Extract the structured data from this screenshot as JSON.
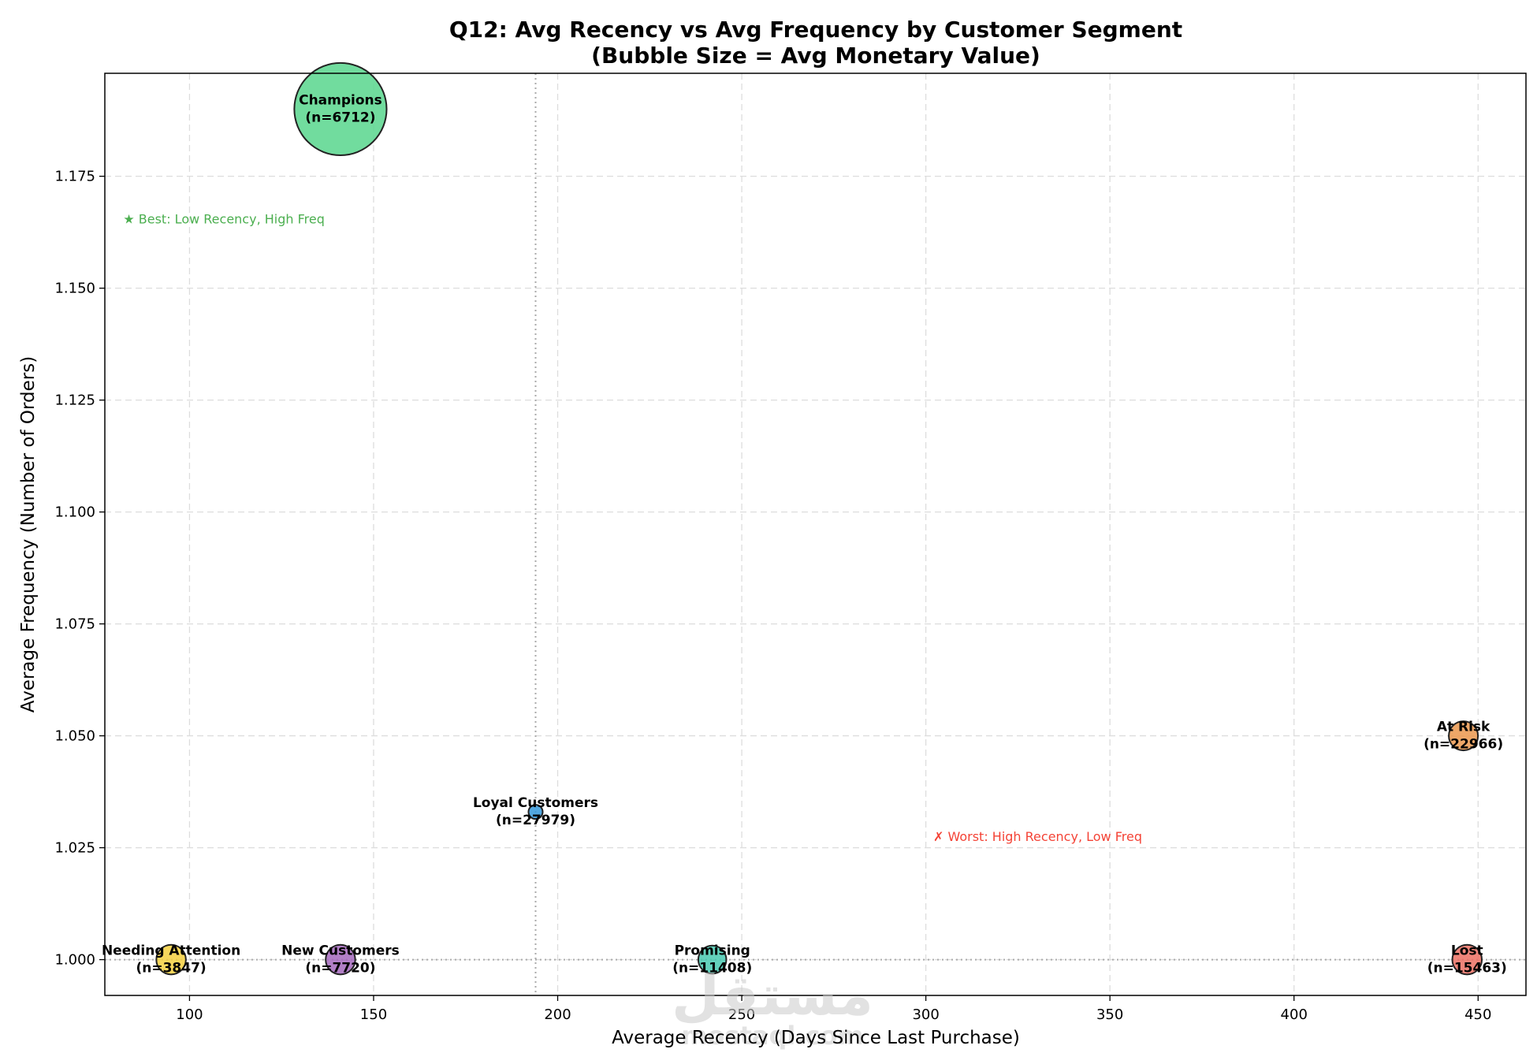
{
  "chart_data": {
    "type": "scatter",
    "title": "Q12: Avg Recency vs Avg Frequency by Customer Segment",
    "subtitle": "(Bubble Size = Avg Monetary Value)",
    "xlabel": "Average Recency (Days Since Last Purchase)",
    "ylabel": "Average Frequency (Number of Orders)",
    "xlim": [
      77,
      463
    ],
    "ylim": [
      0.992,
      1.198
    ],
    "xticks": [
      100,
      150,
      200,
      250,
      300,
      350,
      400,
      450
    ],
    "yticks": [
      1.0,
      1.025,
      1.05,
      1.075,
      1.1,
      1.125,
      1.15,
      1.175
    ],
    "ytick_labels": [
      "1.000",
      "1.025",
      "1.050",
      "1.075",
      "1.100",
      "1.125",
      "1.150",
      "1.175"
    ],
    "grid": true,
    "reference_lines": {
      "x": 194,
      "y": 1.0
    },
    "points": [
      {
        "segment": "Champions",
        "n_label": "(n=6712)",
        "x": 141,
        "y": 1.19,
        "size": 3800,
        "color": "#58d68d"
      },
      {
        "segment": "Loyal Customers",
        "n_label": "(n=27979)",
        "x": 194,
        "y": 1.033,
        "size": 90,
        "color": "#3498db"
      },
      {
        "segment": "At Risk",
        "n_label": "(n=22966)",
        "x": 446,
        "y": 1.05,
        "size": 380,
        "color": "#eb984e"
      },
      {
        "segment": "Needing Attention",
        "n_label": "(n=3847)",
        "x": 95,
        "y": 1.0,
        "size": 390,
        "color": "#f4d03f"
      },
      {
        "segment": "New Customers",
        "n_label": "(n=7720)",
        "x": 141,
        "y": 1.0,
        "size": 390,
        "color": "#a569bd"
      },
      {
        "segment": "Promising",
        "n_label": "(n=11408)",
        "x": 242,
        "y": 1.0,
        "size": 350,
        "color": "#48c9b0"
      },
      {
        "segment": "Lost",
        "n_label": "(n=15463)",
        "x": 447,
        "y": 1.0,
        "size": 390,
        "color": "#ec7063"
      }
    ],
    "annotations": [
      {
        "text": "★ Best: Low Recency, High Freq",
        "x": 82,
        "y": 1.1645,
        "color": "#4caf50"
      },
      {
        "text": "✗ Worst: High Recency, Low Freq",
        "x": 302,
        "y": 1.0265,
        "color": "#f44336"
      }
    ]
  },
  "watermark": {
    "text": "مستقل",
    "subtext": "mostaql.com"
  }
}
